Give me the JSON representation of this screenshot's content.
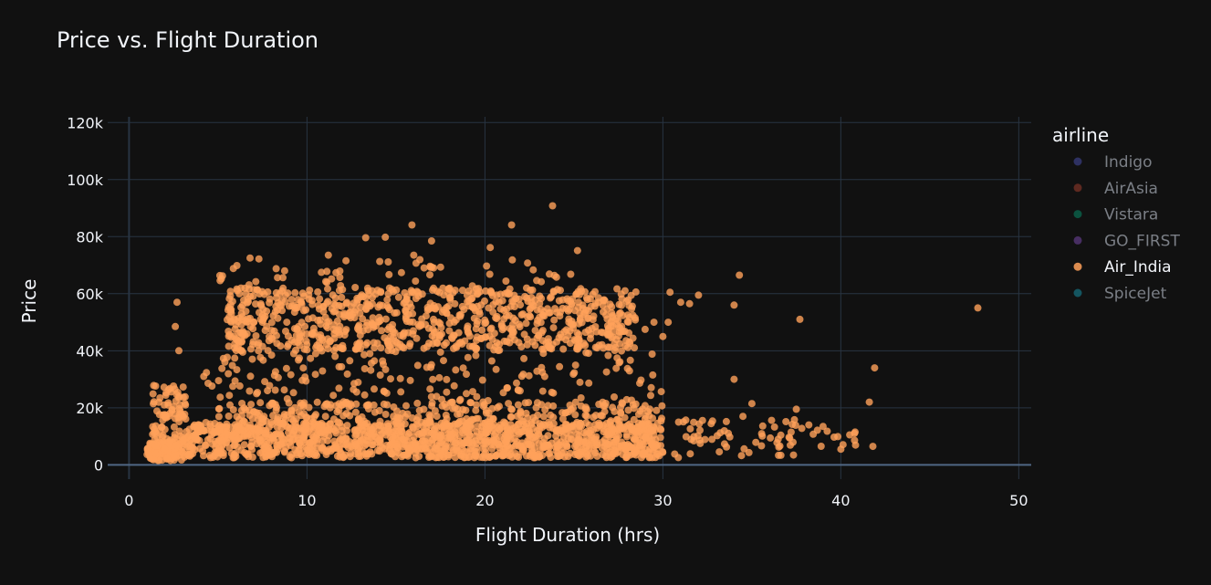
{
  "chart_data": {
    "type": "scatter",
    "title": "Price vs. Flight Duration",
    "xlabel": "Flight Duration (hrs)",
    "ylabel": "Price",
    "xlim": [
      -1.2,
      50.7
    ],
    "ylim": [
      -5000,
      122000
    ],
    "x_ticks": [
      0,
      10,
      20,
      30,
      40,
      50
    ],
    "x_tick_labels": [
      "0",
      "10",
      "20",
      "30",
      "40",
      "50"
    ],
    "y_ticks": [
      0,
      20000,
      40000,
      60000,
      80000,
      100000,
      120000
    ],
    "y_tick_labels": [
      "0",
      "20k",
      "40k",
      "60k",
      "80k",
      "100k",
      "120k"
    ],
    "grid": true,
    "legend": {
      "title": "airline",
      "placement": "right",
      "items": [
        {
          "name": "Indigo",
          "color": "#636efa",
          "visible": false
        },
        {
          "name": "AirAsia",
          "color": "#ef553b",
          "visible": false
        },
        {
          "name": "Vistara",
          "color": "#00cc96",
          "visible": false
        },
        {
          "name": "GO_FIRST",
          "color": "#ab63fa",
          "visible": false
        },
        {
          "name": "Air_India",
          "color": "#ffa15a",
          "visible": true
        },
        {
          "name": "SpiceJet",
          "color": "#19d3f3",
          "visible": false
        }
      ]
    },
    "series": [
      {
        "name": "Air_India",
        "color": "#ffa15a",
        "opacity": 0.8,
        "clusters": [
          {
            "x_range": [
              1,
              3
            ],
            "y_range": [
              1500,
              8000
            ],
            "count": 140
          },
          {
            "x_range": [
              1.3,
              3.2
            ],
            "y_range": [
              8000,
              28000
            ],
            "count": 80
          },
          {
            "x_range": [
              3,
              30
            ],
            "y_range": [
              2500,
              15000
            ],
            "count": 1300
          },
          {
            "x_range": [
              5,
              30
            ],
            "y_range": [
              15000,
              22000
            ],
            "count": 260
          },
          {
            "x_range": [
              4,
              30
            ],
            "y_range": [
              22000,
              40000
            ],
            "count": 160
          },
          {
            "x_range": [
              5.5,
              28.5
            ],
            "y_range": [
              40000,
              62000
            ],
            "count": 850
          },
          {
            "x_range": [
              5,
              25
            ],
            "y_range": [
              62000,
              72000
            ],
            "count": 50
          },
          {
            "x_range": [
              30,
              38
            ],
            "y_range": [
              2500,
              16000
            ],
            "count": 60
          },
          {
            "x_range": [
              38,
              41
            ],
            "y_range": [
              5000,
              14000
            ],
            "count": 10
          }
        ],
        "points": [
          [
            23.8,
            90800
          ],
          [
            15.9,
            84100
          ],
          [
            21.5,
            84100
          ],
          [
            13.3,
            79600
          ],
          [
            14.4,
            79800
          ],
          [
            17.0,
            78500
          ],
          [
            20.3,
            76200
          ],
          [
            25.2,
            75100
          ],
          [
            6.8,
            72500
          ],
          [
            7.3,
            72200
          ],
          [
            16.0,
            73500
          ],
          [
            11.2,
            73500
          ],
          [
            30.4,
            60500
          ],
          [
            31.0,
            57000
          ],
          [
            31.5,
            56500
          ],
          [
            32.0,
            59500
          ],
          [
            34.0,
            56000
          ],
          [
            34.3,
            66500
          ],
          [
            37.7,
            51000
          ],
          [
            47.7,
            55000
          ],
          [
            30.0,
            45000
          ],
          [
            29.5,
            50000
          ],
          [
            30.3,
            50000
          ],
          [
            29.0,
            47500
          ],
          [
            41.9,
            34000
          ],
          [
            41.6,
            22000
          ],
          [
            34.0,
            30000
          ],
          [
            37.5,
            19500
          ],
          [
            41.8,
            6500
          ],
          [
            40.0,
            5500
          ],
          [
            40.5,
            10500
          ],
          [
            40.8,
            11500
          ],
          [
            39.0,
            13500
          ],
          [
            38.2,
            14000
          ],
          [
            2.7,
            57000
          ],
          [
            2.6,
            48500
          ],
          [
            2.8,
            40000
          ],
          [
            4.2,
            31000
          ],
          [
            35.0,
            21500
          ],
          [
            34.5,
            17000
          ]
        ]
      }
    ]
  }
}
